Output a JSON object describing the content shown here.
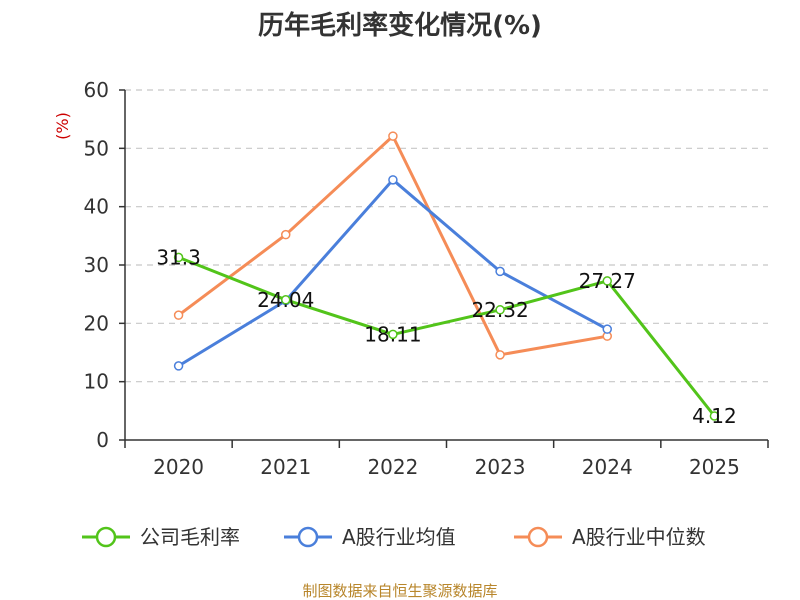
{
  "chart_data": {
    "type": "line",
    "title": "历年毛利率变化情况(%)",
    "ylabel": "(%)",
    "xlabel": "",
    "categories": [
      "2020",
      "2021",
      "2022",
      "2023",
      "2024",
      "2025"
    ],
    "ylim": [
      0,
      60
    ],
    "yticks": [
      0,
      10,
      20,
      30,
      40,
      50,
      60
    ],
    "grid": true,
    "legend_position": "bottom",
    "series": [
      {
        "name": "公司毛利率",
        "color": "#52c41a",
        "values": [
          31.3,
          24.04,
          18.11,
          22.32,
          27.27,
          4.12
        ],
        "labels": [
          "31.3",
          "24.04",
          "18.11",
          "22.32",
          "27.27",
          "4.12"
        ]
      },
      {
        "name": "A股行业均值",
        "color": "#4a7fdb",
        "values": [
          12.7,
          23.9,
          44.6,
          28.9,
          19.0,
          null
        ]
      },
      {
        "name": "A股行业中位数",
        "color": "#f58c57",
        "values": [
          21.4,
          35.2,
          52.1,
          14.6,
          17.8,
          null
        ]
      }
    ]
  },
  "source": "制图数据来自恒生聚源数据库"
}
